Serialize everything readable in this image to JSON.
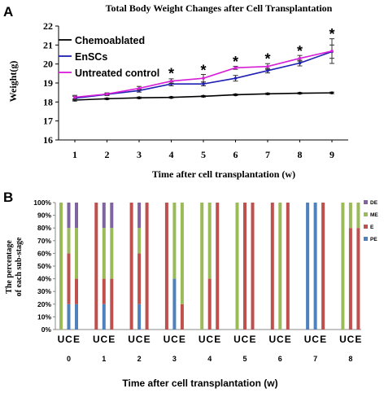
{
  "chart_data": [
    {
      "panel_label": "A",
      "type": "line",
      "title": "Total Body Weight Changes after Cell Transplantation",
      "xlabel": "Time after cell transplantation (w)",
      "ylabel": "Weight(g)",
      "x": [
        1,
        2,
        3,
        4,
        5,
        6,
        7,
        8,
        9
      ],
      "xlim": [
        1,
        9
      ],
      "ylim": [
        16,
        22
      ],
      "yticks": [
        16,
        17,
        18,
        19,
        20,
        21,
        22
      ],
      "grid": false,
      "legend": "top-left",
      "series": [
        {
          "name": "Chemoablated",
          "color": "#000000",
          "values": [
            18.1,
            18.17,
            18.22,
            18.24,
            18.3,
            18.38,
            18.43,
            18.46,
            18.48
          ],
          "errors": [
            0.05,
            0.04,
            0.04,
            0.04,
            0.04,
            0.04,
            0.04,
            0.04,
            0.04
          ]
        },
        {
          "name": "EnSCs",
          "color": "#1f1fb4",
          "values": [
            18.2,
            18.4,
            18.6,
            18.95,
            18.95,
            19.25,
            19.65,
            20.05,
            20.65
          ],
          "errors": [
            0.1,
            0.06,
            0.08,
            0.1,
            0.1,
            0.15,
            0.12,
            0.15,
            0.35
          ]
        },
        {
          "name": "Untreated control",
          "color": "#d81ed8",
          "values": [
            18.25,
            18.42,
            18.72,
            19.1,
            19.25,
            19.8,
            19.87,
            20.3,
            20.68
          ],
          "errors": [
            0.1,
            0.06,
            0.1,
            0.12,
            0.2,
            0.08,
            0.15,
            0.15,
            0.65
          ]
        }
      ],
      "annotations": [
        {
          "x": 4,
          "y": 19.62,
          "text": "*"
        },
        {
          "x": 5,
          "y": 19.8,
          "text": "*"
        },
        {
          "x": 6,
          "y": 20.25,
          "text": "*"
        },
        {
          "x": 7,
          "y": 20.4,
          "text": "*"
        },
        {
          "x": 8,
          "y": 20.8,
          "text": "*"
        },
        {
          "x": 9,
          "y": 21.7,
          "text": "*"
        }
      ]
    },
    {
      "panel_label": "B",
      "type": "bar",
      "stacked": true,
      "xlabel": "Time after cell transplantation (w)",
      "ylabel_lines": [
        "The percentage",
        "of each sub-stage"
      ],
      "yticks": [
        "0%",
        "10%",
        "20%",
        "30%",
        "40%",
        "50%",
        "60%",
        "70%",
        "80%",
        "90%",
        "100%"
      ],
      "ylim": [
        0,
        100
      ],
      "legend": "right",
      "bar_labels": [
        "U",
        "C",
        "E"
      ],
      "groups": [
        "0",
        "1",
        "2",
        "3",
        "4",
        "5",
        "6",
        "7",
        "8"
      ],
      "stages": [
        {
          "name": "PE",
          "color": "#4f81bd"
        },
        {
          "name": "E",
          "color": "#c0504d"
        },
        {
          "name": "ME",
          "color": "#9bbb59"
        },
        {
          "name": "DE",
          "color": "#8064a2"
        }
      ],
      "bars": [
        [
          [
            0,
            0,
            100,
            0
          ],
          [
            20,
            40,
            20,
            20
          ],
          [
            20,
            20,
            40,
            20
          ]
        ],
        [
          [
            0,
            100,
            0,
            0
          ],
          [
            20,
            20,
            40,
            20
          ],
          [
            0,
            40,
            40,
            20
          ]
        ],
        [
          [
            0,
            100,
            0,
            0
          ],
          [
            20,
            40,
            20,
            20
          ],
          [
            0,
            100,
            0,
            0
          ]
        ],
        [
          [
            0,
            100,
            0,
            0
          ],
          [
            40,
            0,
            60,
            0
          ],
          [
            0,
            20,
            80,
            0
          ]
        ],
        [
          [
            0,
            0,
            100,
            0
          ],
          [
            0,
            40,
            60,
            0
          ],
          [
            0,
            100,
            0,
            0
          ]
        ],
        [
          [
            0,
            0,
            100,
            0
          ],
          [
            0,
            100,
            0,
            0
          ],
          [
            0,
            100,
            0,
            0
          ]
        ],
        [
          [
            0,
            100,
            0,
            0
          ],
          [
            0,
            0,
            100,
            0
          ],
          [
            0,
            100,
            0,
            0
          ]
        ],
        [
          [
            100,
            0,
            0,
            0
          ],
          [
            100,
            0,
            0,
            0
          ],
          [
            0,
            100,
            0,
            0
          ]
        ],
        [
          [
            0,
            0,
            100,
            0
          ],
          [
            0,
            80,
            20,
            0
          ],
          [
            0,
            80,
            20,
            0
          ]
        ]
      ]
    }
  ]
}
